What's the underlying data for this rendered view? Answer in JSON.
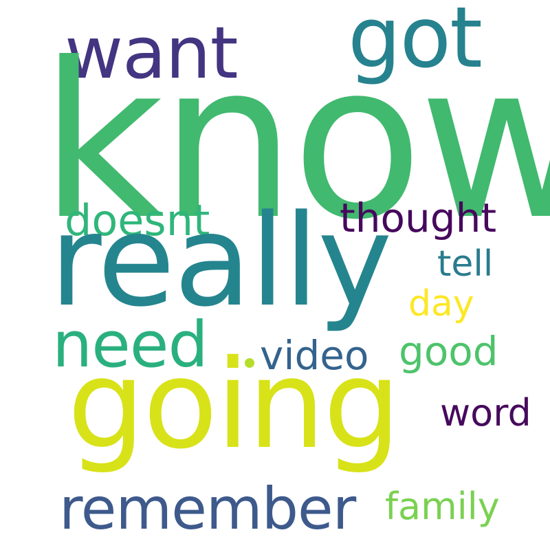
{
  "cloud": {
    "words": {
      "know": {
        "text": "know",
        "color": "#41b96f"
      },
      "really": {
        "text": "really",
        "color": "#25858e"
      },
      "going": {
        "text": "going",
        "color": "#d8e219"
      },
      "remember": {
        "text": "remember",
        "color": "#3e5a8c"
      },
      "want": {
        "text": "want",
        "color": "#433581"
      },
      "got": {
        "text": "got",
        "color": "#26828e"
      },
      "need": {
        "text": "need",
        "color": "#2ab07f"
      },
      "doesnt": {
        "text": "doesnt",
        "color": "#30b67b"
      },
      "thought": {
        "text": "thought",
        "color": "#46085c"
      },
      "tell": {
        "text": "tell",
        "color": "#2a7b8e"
      },
      "day": {
        "text": "day",
        "color": "#fde725"
      },
      "video": {
        "text": "video",
        "color": "#33638d"
      },
      "good": {
        "text": "good",
        "color": "#4ec36b"
      },
      "word": {
        "text": "word",
        "color": "#460a5d"
      },
      "family": {
        "text": "family",
        "color": "#7ad151"
      }
    },
    "dot_color": "#b5de2b"
  }
}
